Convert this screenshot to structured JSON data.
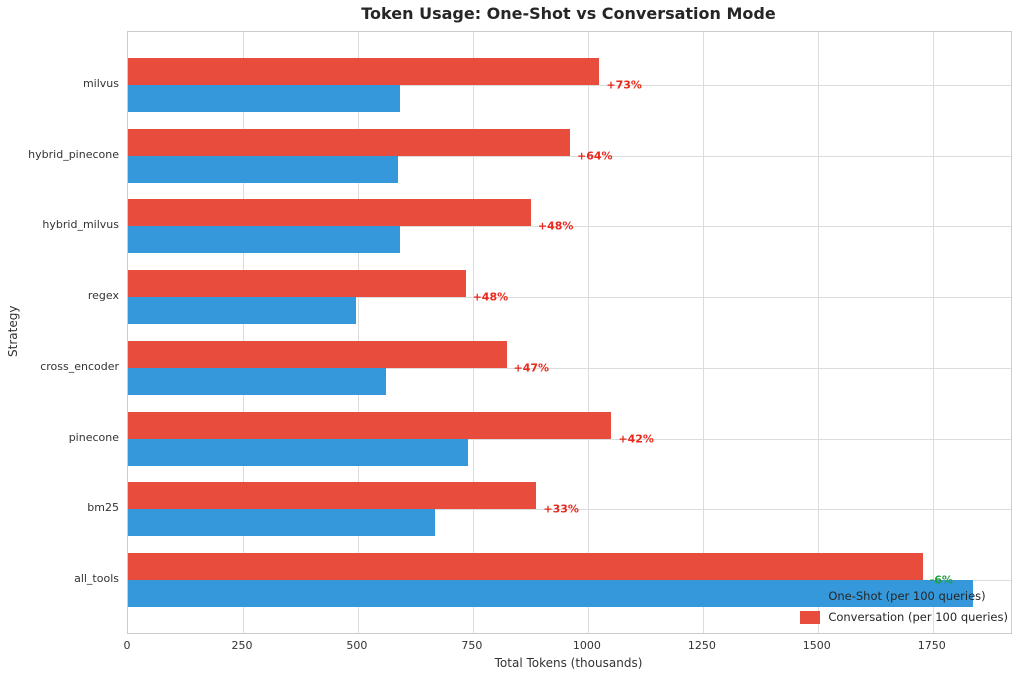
{
  "chart_data": {
    "type": "bar",
    "orientation": "horizontal",
    "title": "Token Usage: One-Shot vs Conversation Mode",
    "xlabel": "Total Tokens (thousands)",
    "ylabel": "Strategy",
    "xlim": [
      0,
      1920
    ],
    "xticks": [
      0,
      250,
      500,
      750,
      1000,
      1250,
      1500,
      1750
    ],
    "grid": true,
    "legend_position": "lower right",
    "categories": [
      "milvus",
      "hybrid_pinecone",
      "hybrid_milvus",
      "regex",
      "cross_encoder",
      "pinecone",
      "bm25",
      "all_tools"
    ],
    "series": [
      {
        "name": "One-Shot (per 100 queries)",
        "color": "#3498db",
        "values": [
          592,
          586,
          592,
          496,
          560,
          740,
          668,
          1838
        ]
      },
      {
        "name": "Conversation (per 100 queries)",
        "color": "#e74c3c",
        "values": [
          1025,
          961,
          876,
          734,
          823,
          1051,
          888,
          1728
        ]
      }
    ],
    "annotations": [
      {
        "text": "+73%",
        "color": "#e8291c"
      },
      {
        "text": "+64%",
        "color": "#e8291c"
      },
      {
        "text": "+48%",
        "color": "#e8291c"
      },
      {
        "text": "+48%",
        "color": "#e8291c"
      },
      {
        "text": "+47%",
        "color": "#e8291c"
      },
      {
        "text": "+42%",
        "color": "#e8291c"
      },
      {
        "text": "+33%",
        "color": "#e8291c"
      },
      {
        "text": "-6%",
        "color": "#22a03c"
      }
    ],
    "colors": {
      "grid": "#dcdcdc",
      "spine": "#cccccc",
      "tick_label": "#333333",
      "title": "#262626",
      "legend_text": "#262626",
      "background": "#ffffff"
    }
  }
}
